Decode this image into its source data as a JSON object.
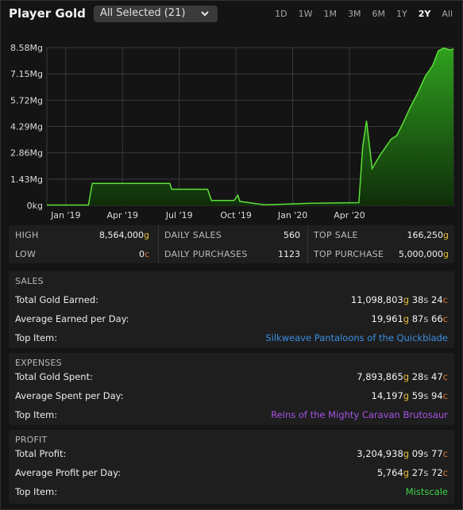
{
  "header": {
    "title": "Player Gold",
    "selector_value": "All Selected (21)",
    "ranges": [
      "1D",
      "1W",
      "1M",
      "3M",
      "6M",
      "1Y",
      "2Y",
      "All"
    ],
    "active_range": "2Y"
  },
  "chart_data": {
    "type": "area",
    "y_tick_labels": [
      "8.58Mg",
      "7.15Mg",
      "5.72Mg",
      "4.29Mg",
      "2.86Mg",
      "1.43Mg",
      "0kg"
    ],
    "ylim": [
      0,
      8.58
    ],
    "y_unit": "Mg",
    "x_tick_labels": [
      "Jan '19",
      "Apr '19",
      "Jul '19",
      "Oct '19",
      "Jan '20",
      "Apr '20"
    ],
    "x_tick_months": [
      0,
      3,
      6,
      9,
      12,
      15
    ],
    "xlim_months": [
      -1,
      20.5
    ],
    "grid": true,
    "line_color": "#5ce03a",
    "fill_top_color": "#2fa01e",
    "fill_bottom_color": "#0f2e0a",
    "series": [
      {
        "x": [
          -1,
          1.2,
          1.4,
          4.2,
          4.3,
          5.5,
          5.6,
          6.2,
          6.3,
          7.5,
          7.7,
          8.7,
          8.9,
          9.1,
          9.2,
          10.5,
          13.0,
          15.5,
          15.7,
          15.9,
          16.2,
          16.6,
          17.2,
          17.5,
          17.8,
          18.2,
          18.6,
          19.0,
          19.4,
          19.7,
          20.0,
          20.3,
          20.5
        ],
        "y": [
          0.02,
          0.02,
          1.2,
          1.2,
          1.2,
          1.2,
          0.88,
          0.88,
          0.88,
          0.88,
          0.27,
          0.27,
          0.27,
          0.55,
          0.22,
          0.03,
          0.12,
          0.15,
          3.2,
          4.6,
          2.0,
          2.7,
          3.6,
          3.8,
          4.4,
          5.3,
          6.1,
          7.0,
          7.6,
          8.4,
          8.56,
          8.45,
          8.5
        ]
      }
    ]
  },
  "stats": {
    "high_label": "HIGH",
    "high_value": "8,564,000",
    "high_unit": "g",
    "low_label": "LOW",
    "low_value": "0",
    "low_unit": "c",
    "daily_sales_label": "DAILY SALES",
    "daily_sales_value": "560",
    "daily_purchases_label": "DAILY PURCHASES",
    "daily_purchases_value": "1123",
    "top_sale_label": "TOP SALE",
    "top_sale_value": "166,250",
    "top_sale_unit": "g",
    "top_purchase_label": "TOP PURCHASE",
    "top_purchase_value": "5,000,000",
    "top_purchase_unit": "g"
  },
  "sales": {
    "heading": "SALES",
    "total_label": "Total Gold Earned:",
    "total_g": "11,098,803",
    "total_s": "38",
    "total_c": "24",
    "avg_label": "Average Earned per Day:",
    "avg_g": "19,961",
    "avg_s": "87",
    "avg_c": "66",
    "top_label": "Top Item:",
    "top_item": "Silkweave Pantaloons of the Quickblade",
    "top_item_color": "#3a8fe0"
  },
  "expenses": {
    "heading": "EXPENSES",
    "total_label": "Total Gold Spent:",
    "total_g": "7,893,865",
    "total_s": "28",
    "total_c": "47",
    "avg_label": "Average Spent per Day:",
    "avg_g": "14,197",
    "avg_s": "59",
    "avg_c": "94",
    "top_label": "Top Item:",
    "top_item": "Reins of the Mighty Caravan Brutosaur",
    "top_item_color": "#a653e6"
  },
  "profit": {
    "heading": "PROFIT",
    "total_label": "Total Profit:",
    "total_g": "3,204,938",
    "total_s": "09",
    "total_c": "77",
    "avg_label": "Average Profit per Day:",
    "avg_g": "5,764",
    "avg_s": "27",
    "avg_c": "72",
    "top_label": "Top Item:",
    "top_item": "Mistscale",
    "top_item_color": "#3ed44a"
  },
  "currency": {
    "g": "g",
    "s": "s",
    "c": "c"
  }
}
